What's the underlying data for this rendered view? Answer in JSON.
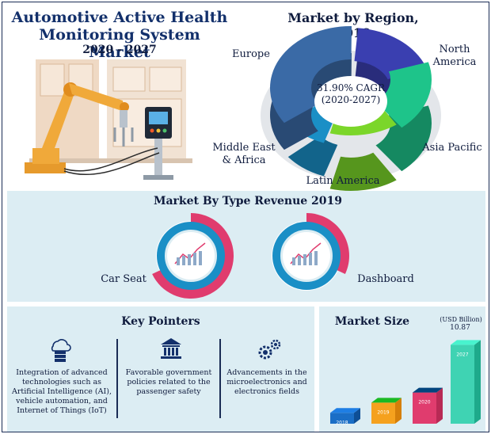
{
  "header": {
    "title": "Automotive Active Health Monitoring System Market",
    "years": "2020 - 2027"
  },
  "region": {
    "title": "Market by Region, 2019",
    "cagr": "31.90% CAGR",
    "cagr_period": "(2020-2027)",
    "labels": {
      "europe": "Europe",
      "north_america": "North America",
      "asia_pacific": "Asia Pacific",
      "latin_america": "Latin America",
      "mea": "Middle East & Africa"
    }
  },
  "type_revenue": {
    "title": "Market By Type Revenue 2019",
    "car_seat": "Car Seat",
    "dashboard": "Dashboard"
  },
  "key_pointers": {
    "title": "Key Pointers",
    "items": [
      {
        "text": "Integration of advanced technologies such as Artificial Intelligence (AI), vehicle automation, and Internet of Things (IoT)",
        "icon": "cloud-database-icon"
      },
      {
        "text": "Favorable government policies related to the passenger safety",
        "icon": "government-building-icon"
      },
      {
        "text": "Advancements in the microelectronics and electronics fields",
        "icon": "gears-icon"
      }
    ]
  },
  "market_size": {
    "title": "Market Size",
    "unit": "(USD Billion)",
    "final_value": "10.87",
    "bar_years": [
      "2018",
      "2019",
      "2020",
      "2027"
    ]
  },
  "colors": {
    "navy": "#13306b",
    "panel": "#dcedf3",
    "europe": "#3a6aa6",
    "north_america": "#3a3fb0",
    "asia_pacific": "#1ec48a",
    "latin_america": "#7bd62a",
    "mea": "#1a8fc6",
    "pink": "#e03c6e",
    "blue_ring": "#1a8fc6"
  },
  "chart_data": [
    {
      "type": "pie",
      "title": "Market by Region, 2019",
      "categories": [
        "North America",
        "Asia Pacific",
        "Latin America",
        "Middle East & Africa",
        "Europe"
      ],
      "values": [
        19,
        20,
        15,
        10,
        36
      ],
      "annotation": "31.90% CAGR (2020-2027)"
    },
    {
      "type": "pie",
      "title": "Market By Type Revenue 2019",
      "subcharts": [
        {
          "name": "Car Seat",
          "categories": [
            "Car Seat",
            "Other"
          ],
          "values": [
            68,
            32
          ]
        },
        {
          "name": "Dashboard",
          "categories": [
            "Dashboard",
            "Other"
          ],
          "values": [
            32,
            68
          ]
        }
      ]
    },
    {
      "type": "bar",
      "title": "Market Size",
      "ylabel": "(USD Billion)",
      "categories": [
        "2018",
        "2019",
        "2020",
        "2027"
      ],
      "values": [
        1.5,
        2.9,
        4.3,
        10.87
      ],
      "data_labels": {
        "2027": "10.87"
      }
    }
  ]
}
